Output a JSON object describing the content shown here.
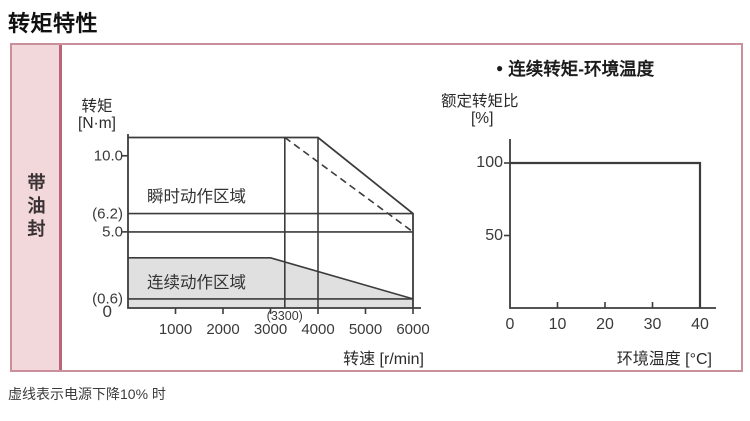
{
  "page": {
    "title": "转矩特性",
    "note": "虚线表示电源下降10% 时"
  },
  "sidebar": {
    "label": "带油封"
  },
  "colors": {
    "line": "#3c3c3c",
    "region_fill": "#e0e0e1",
    "box_border": "#c9909b",
    "band_fill": "#f2d8da",
    "band_border": "#bb6677"
  },
  "chart_data": [
    {
      "id": "torque_speed",
      "type": "line",
      "title": "",
      "xlabel": "转速 [r/min]",
      "ylabel": "转矩",
      "ylabel_unit": "[N·m]",
      "xlim": [
        0,
        6000
      ],
      "ylim": [
        0,
        11.2
      ],
      "grid": false,
      "origin_label": "0",
      "region_labels": [
        "瞬时动作区域",
        "连续动作区域"
      ],
      "x_ticks": [
        {
          "value": 1000,
          "label": "1000",
          "mark": true
        },
        {
          "value": 2000,
          "label": "2000",
          "mark": true
        },
        {
          "value": 3000,
          "label": "3000",
          "mark": true
        },
        {
          "value": 3300,
          "label": "(3300)",
          "minor": true
        },
        {
          "value": 4000,
          "label": "4000",
          "mark": true
        },
        {
          "value": 5000,
          "label": "5000",
          "mark": true
        },
        {
          "value": 6000,
          "label": "6000",
          "mark": true
        }
      ],
      "y_ticks": [
        {
          "value": 10.0,
          "label": "10.0",
          "mark": true
        },
        {
          "value": 6.2,
          "label": "(6.2)",
          "mark": false
        },
        {
          "value": 5.0,
          "label": "5.0",
          "mark": true
        },
        {
          "value": 0.6,
          "label": "(0.6)",
          "mark": false
        }
      ],
      "series": [
        {
          "name": "continuous-region-fill",
          "fill": true,
          "style": "none",
          "points": [
            [
              0,
              3.3
            ],
            [
              3000,
              3.3
            ],
            [
              6000,
              0.6
            ],
            [
              6000,
              0
            ],
            [
              0,
              0
            ]
          ]
        },
        {
          "name": "continuous-region-boundary",
          "style": "solid",
          "points": [
            [
              0,
              3.3
            ],
            [
              3000,
              3.3
            ],
            [
              6000,
              0.6
            ]
          ]
        },
        {
          "name": "limit-line-6.2",
          "style": "solid",
          "points": [
            [
              0,
              6.2
            ],
            [
              6000,
              6.2
            ]
          ]
        },
        {
          "name": "limit-line-5.0",
          "style": "solid",
          "points": [
            [
              0,
              5.0
            ],
            [
              6000,
              5.0
            ]
          ]
        },
        {
          "name": "limit-line-0.6",
          "style": "solid",
          "points": [
            [
              0,
              0.6
            ],
            [
              6000,
              0.6
            ]
          ]
        },
        {
          "name": "vertical-line-3300",
          "style": "solid",
          "points": [
            [
              3300,
              0
            ],
            [
              3300,
              11.2
            ]
          ]
        },
        {
          "name": "vertical-line-4000",
          "style": "solid",
          "points": [
            [
              4000,
              0
            ],
            [
              4000,
              11.2
            ]
          ]
        },
        {
          "name": "instantaneous-region-boundary",
          "style": "solid",
          "width": 1.8,
          "points": [
            [
              0,
              11.2
            ],
            [
              4000,
              11.2
            ],
            [
              6000,
              6.2
            ],
            [
              6000,
              0
            ]
          ]
        },
        {
          "name": "voltage-drop-10pct-boundary",
          "style": "dashed",
          "points": [
            [
              3300,
              11.2
            ],
            [
              6000,
              5.0
            ]
          ]
        }
      ]
    },
    {
      "id": "torque_temperature",
      "type": "line",
      "title": "连续转矩-环境温度",
      "title_bullet": "●",
      "xlabel": "环境温度 [°C]",
      "ylabel": "额定转矩比",
      "ylabel_unit": "[%]",
      "xlim": [
        0,
        40
      ],
      "ylim": [
        0,
        110
      ],
      "grid": false,
      "x_ticks": [
        {
          "value": 0,
          "label": "0"
        },
        {
          "value": 10,
          "label": "10",
          "mark": true
        },
        {
          "value": 20,
          "label": "20",
          "mark": true
        },
        {
          "value": 30,
          "label": "30",
          "mark": true
        },
        {
          "value": 40,
          "label": "40",
          "mark": true
        }
      ],
      "y_ticks": [
        {
          "value": 100,
          "label": "100",
          "mark": true
        },
        {
          "value": 50,
          "label": "50",
          "mark": true
        }
      ],
      "series": [
        {
          "name": "rated-torque-ratio-line",
          "style": "solid",
          "width": 2.2,
          "points": [
            [
              0,
              100
            ],
            [
              40,
              100
            ],
            [
              40,
              0
            ]
          ]
        }
      ]
    }
  ]
}
